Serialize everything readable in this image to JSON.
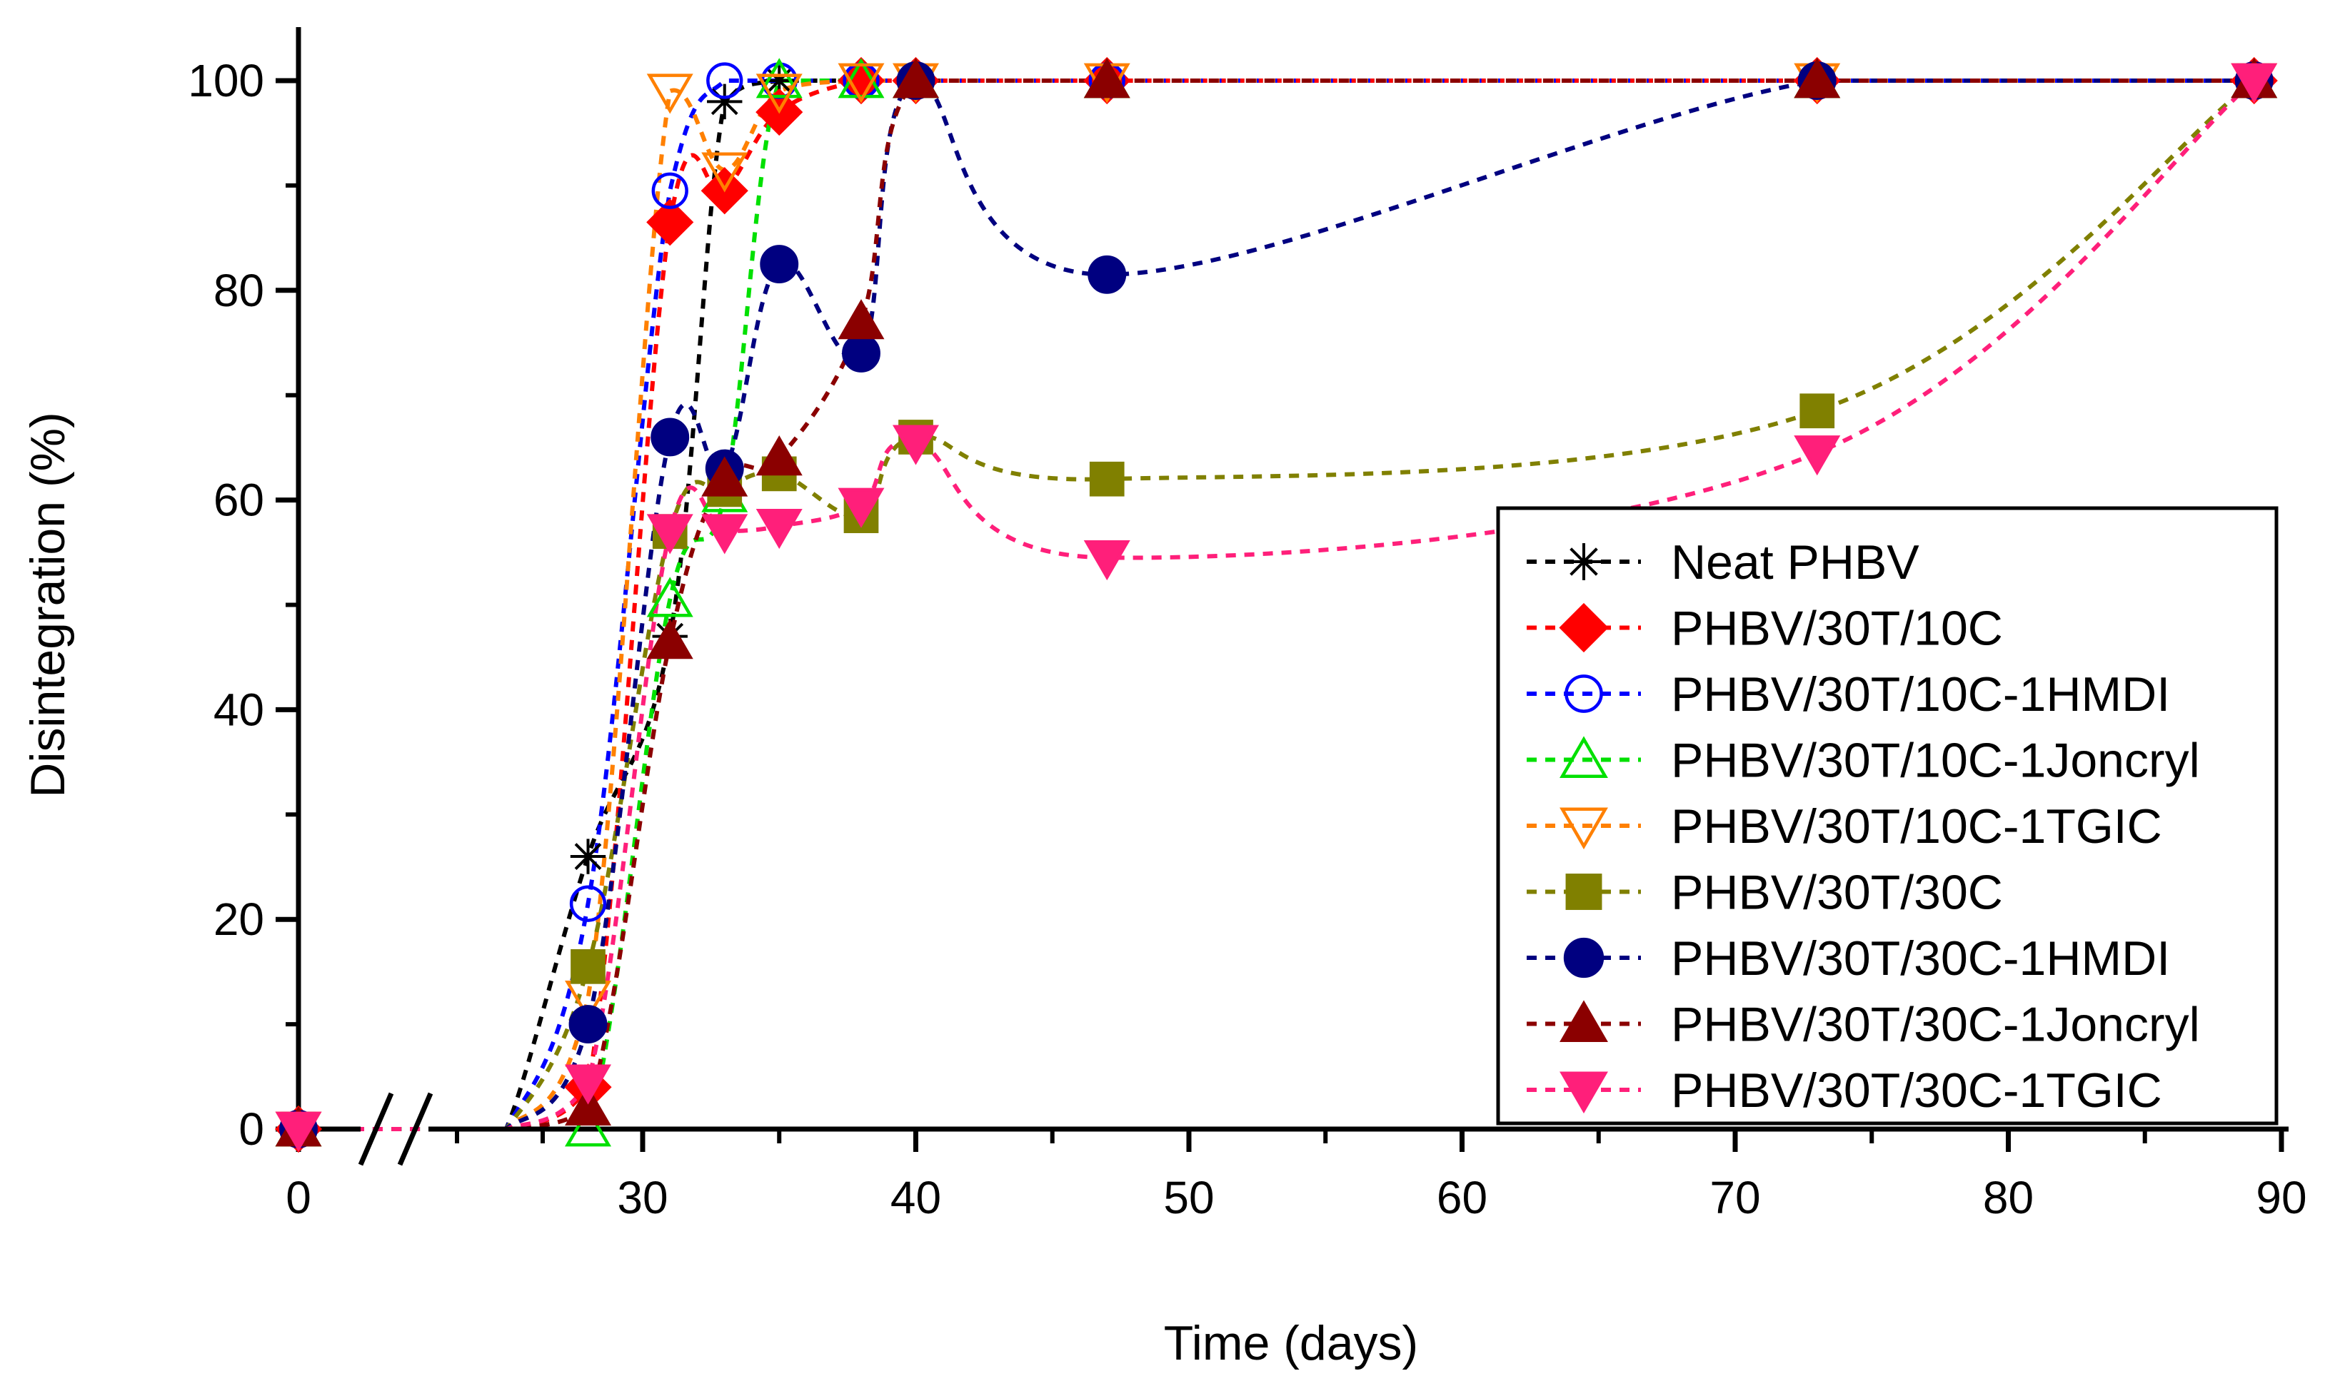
{
  "chart_data": {
    "type": "scatter",
    "title": "",
    "xlabel": "Time (days)",
    "ylabel": "Disintegration (%)",
    "xlim": [
      0,
      90
    ],
    "ylim": [
      0,
      100
    ],
    "grid": false,
    "legend_position": "right",
    "axis_break": "x-axis break between 0 and ~25 days",
    "x_ticks": [
      {
        "value": 0,
        "label": "0"
      },
      {
        "value": 30,
        "label": "30"
      },
      {
        "value": 40,
        "label": "40"
      },
      {
        "value": 50,
        "label": "50"
      },
      {
        "value": 60,
        "label": "60"
      },
      {
        "value": 70,
        "label": "70"
      },
      {
        "value": 80,
        "label": "80"
      },
      {
        "value": 90,
        "label": "90"
      }
    ],
    "y_ticks": [
      {
        "value": 0,
        "label": "0"
      },
      {
        "value": 20,
        "label": "20"
      },
      {
        "value": 40,
        "label": "40"
      },
      {
        "value": 60,
        "label": "60"
      },
      {
        "value": 80,
        "label": "80"
      },
      {
        "value": 100,
        "label": "100"
      }
    ],
    "series": [
      {
        "name": "Neat PHBV",
        "color": "#000000",
        "marker": "star",
        "x": [
          0,
          28,
          31,
          33,
          35,
          38,
          40,
          47,
          73,
          89
        ],
        "y": [
          0,
          26,
          47,
          98,
          100,
          100,
          100,
          100,
          100,
          100
        ]
      },
      {
        "name": "PHBV/30T/10C",
        "color": "#ff0000",
        "marker": "diamond-filled",
        "x": [
          0,
          28,
          31,
          33,
          35,
          38,
          40,
          47,
          73,
          89
        ],
        "y": [
          0,
          4,
          86.5,
          89.5,
          97,
          100,
          100,
          100,
          100,
          100
        ]
      },
      {
        "name": "PHBV/30T/10C-1HMDI",
        "color": "#0000ff",
        "marker": "circle-open",
        "x": [
          0,
          28,
          31,
          33,
          35,
          38,
          40,
          47,
          73,
          89
        ],
        "y": [
          0,
          21.5,
          89.5,
          100,
          100,
          100,
          100,
          100,
          100,
          100
        ]
      },
      {
        "name": "PHBV/30T/10C-1Joncryl",
        "color": "#00e000",
        "marker": "triangle-up-open",
        "x": [
          0,
          28,
          31,
          33,
          35,
          38,
          40,
          47,
          73,
          89
        ],
        "y": [
          0,
          0,
          50.5,
          60.5,
          100,
          100,
          100,
          100,
          100,
          100
        ]
      },
      {
        "name": "PHBV/30T/10C-1TGIC",
        "color": "#ff8000",
        "marker": "triangle-down-open",
        "x": [
          0,
          28,
          31,
          33,
          35,
          38,
          40,
          47,
          73,
          89
        ],
        "y": [
          0,
          12.5,
          99,
          91.5,
          99,
          100,
          100,
          100,
          100,
          100
        ]
      },
      {
        "name": "PHBV/30T/30C",
        "color": "#808000",
        "marker": "square-filled",
        "x": [
          0,
          28,
          31,
          33,
          35,
          38,
          40,
          47,
          73,
          89
        ],
        "y": [
          0,
          15.5,
          57,
          61,
          62.5,
          58.5,
          66,
          62,
          68.5,
          100
        ]
      },
      {
        "name": "PHBV/30T/30C-1HMDI",
        "color": "#000080",
        "marker": "circle-filled",
        "x": [
          0,
          28,
          31,
          33,
          35,
          38,
          40,
          47,
          73,
          89
        ],
        "y": [
          0,
          10,
          66,
          63,
          82.5,
          74,
          100,
          81.5,
          100,
          100
        ]
      },
      {
        "name": "PHBV/30T/30C-1Joncryl",
        "color": "#8b0000",
        "marker": "triangle-up-filled",
        "x": [
          0,
          28,
          31,
          33,
          35,
          38,
          40,
          47,
          73,
          89
        ],
        "y": [
          0,
          2,
          46.5,
          62,
          64,
          77,
          100,
          100,
          100,
          100
        ]
      },
      {
        "name": "PHBV/30T/30C-1TGIC",
        "color": "#ff1f7a",
        "marker": "triangle-down-filled",
        "x": [
          0,
          28,
          31,
          33,
          35,
          38,
          40,
          47,
          73,
          89
        ],
        "y": [
          0,
          4.5,
          57,
          57,
          57.5,
          59.5,
          65.5,
          54.5,
          64.5,
          100
        ]
      }
    ]
  }
}
